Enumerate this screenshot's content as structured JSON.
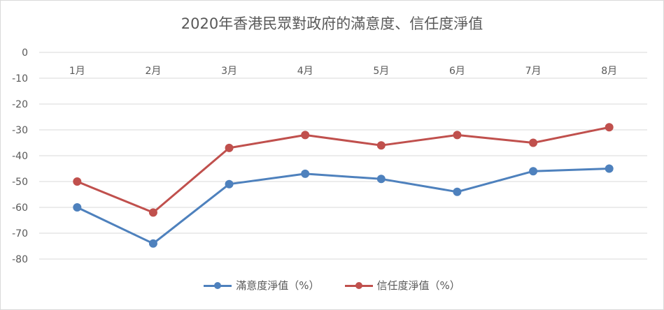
{
  "chart_data": {
    "type": "line",
    "title": "2020年香港民眾對政府的滿意度、信任度淨值",
    "categories": [
      "1月",
      "2月",
      "3月",
      "4月",
      "5月",
      "6月",
      "7月",
      "8月"
    ],
    "series": [
      {
        "name": "滿意度淨值（%）",
        "color": "#4e81bd",
        "values": [
          -60,
          -74,
          -51,
          -47,
          -49,
          -54,
          -46,
          -45
        ]
      },
      {
        "name": "信任度淨值（%）",
        "color": "#c0504d",
        "values": [
          -50,
          -62,
          -37,
          -32,
          -36,
          -32,
          -35,
          -29
        ]
      }
    ],
    "ylim": [
      -80,
      0
    ],
    "yticks": [
      0,
      -10,
      -20,
      -30,
      -40,
      -50,
      -60,
      -70,
      -80
    ],
    "grid": true,
    "legend_position": "bottom"
  }
}
